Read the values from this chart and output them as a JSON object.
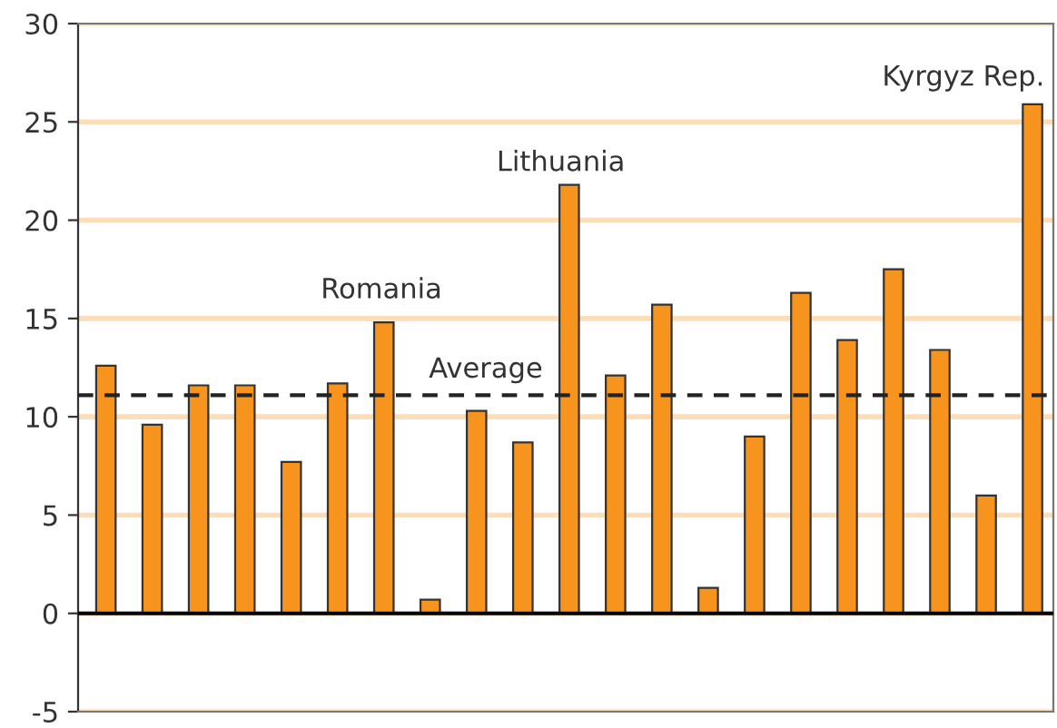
{
  "chart_data": {
    "type": "bar",
    "categories": [
      null,
      null,
      null,
      null,
      null,
      null,
      null,
      null,
      null,
      null,
      null,
      null,
      null,
      null,
      null,
      null,
      null,
      null,
      null,
      null,
      null
    ],
    "values": [
      12.6,
      9.6,
      11.6,
      11.6,
      7.7,
      11.7,
      14.8,
      0.7,
      10.3,
      8.7,
      21.8,
      12.1,
      15.7,
      1.3,
      9.0,
      16.3,
      13.9,
      17.5,
      13.4,
      6.0,
      25.9
    ],
    "color": "#f7941d",
    "ylim": [
      -5,
      30
    ],
    "yticks": [
      -5,
      0,
      5,
      10,
      15,
      20,
      25,
      30
    ],
    "grid": "y",
    "ref_lines": [
      {
        "axis": "y",
        "value": 11.1,
        "label": "Average",
        "color": "#222222",
        "line_style": "dashed"
      }
    ],
    "annotations": [
      "Romania",
      "Lithuania",
      "Kyrgyz Rep."
    ]
  }
}
